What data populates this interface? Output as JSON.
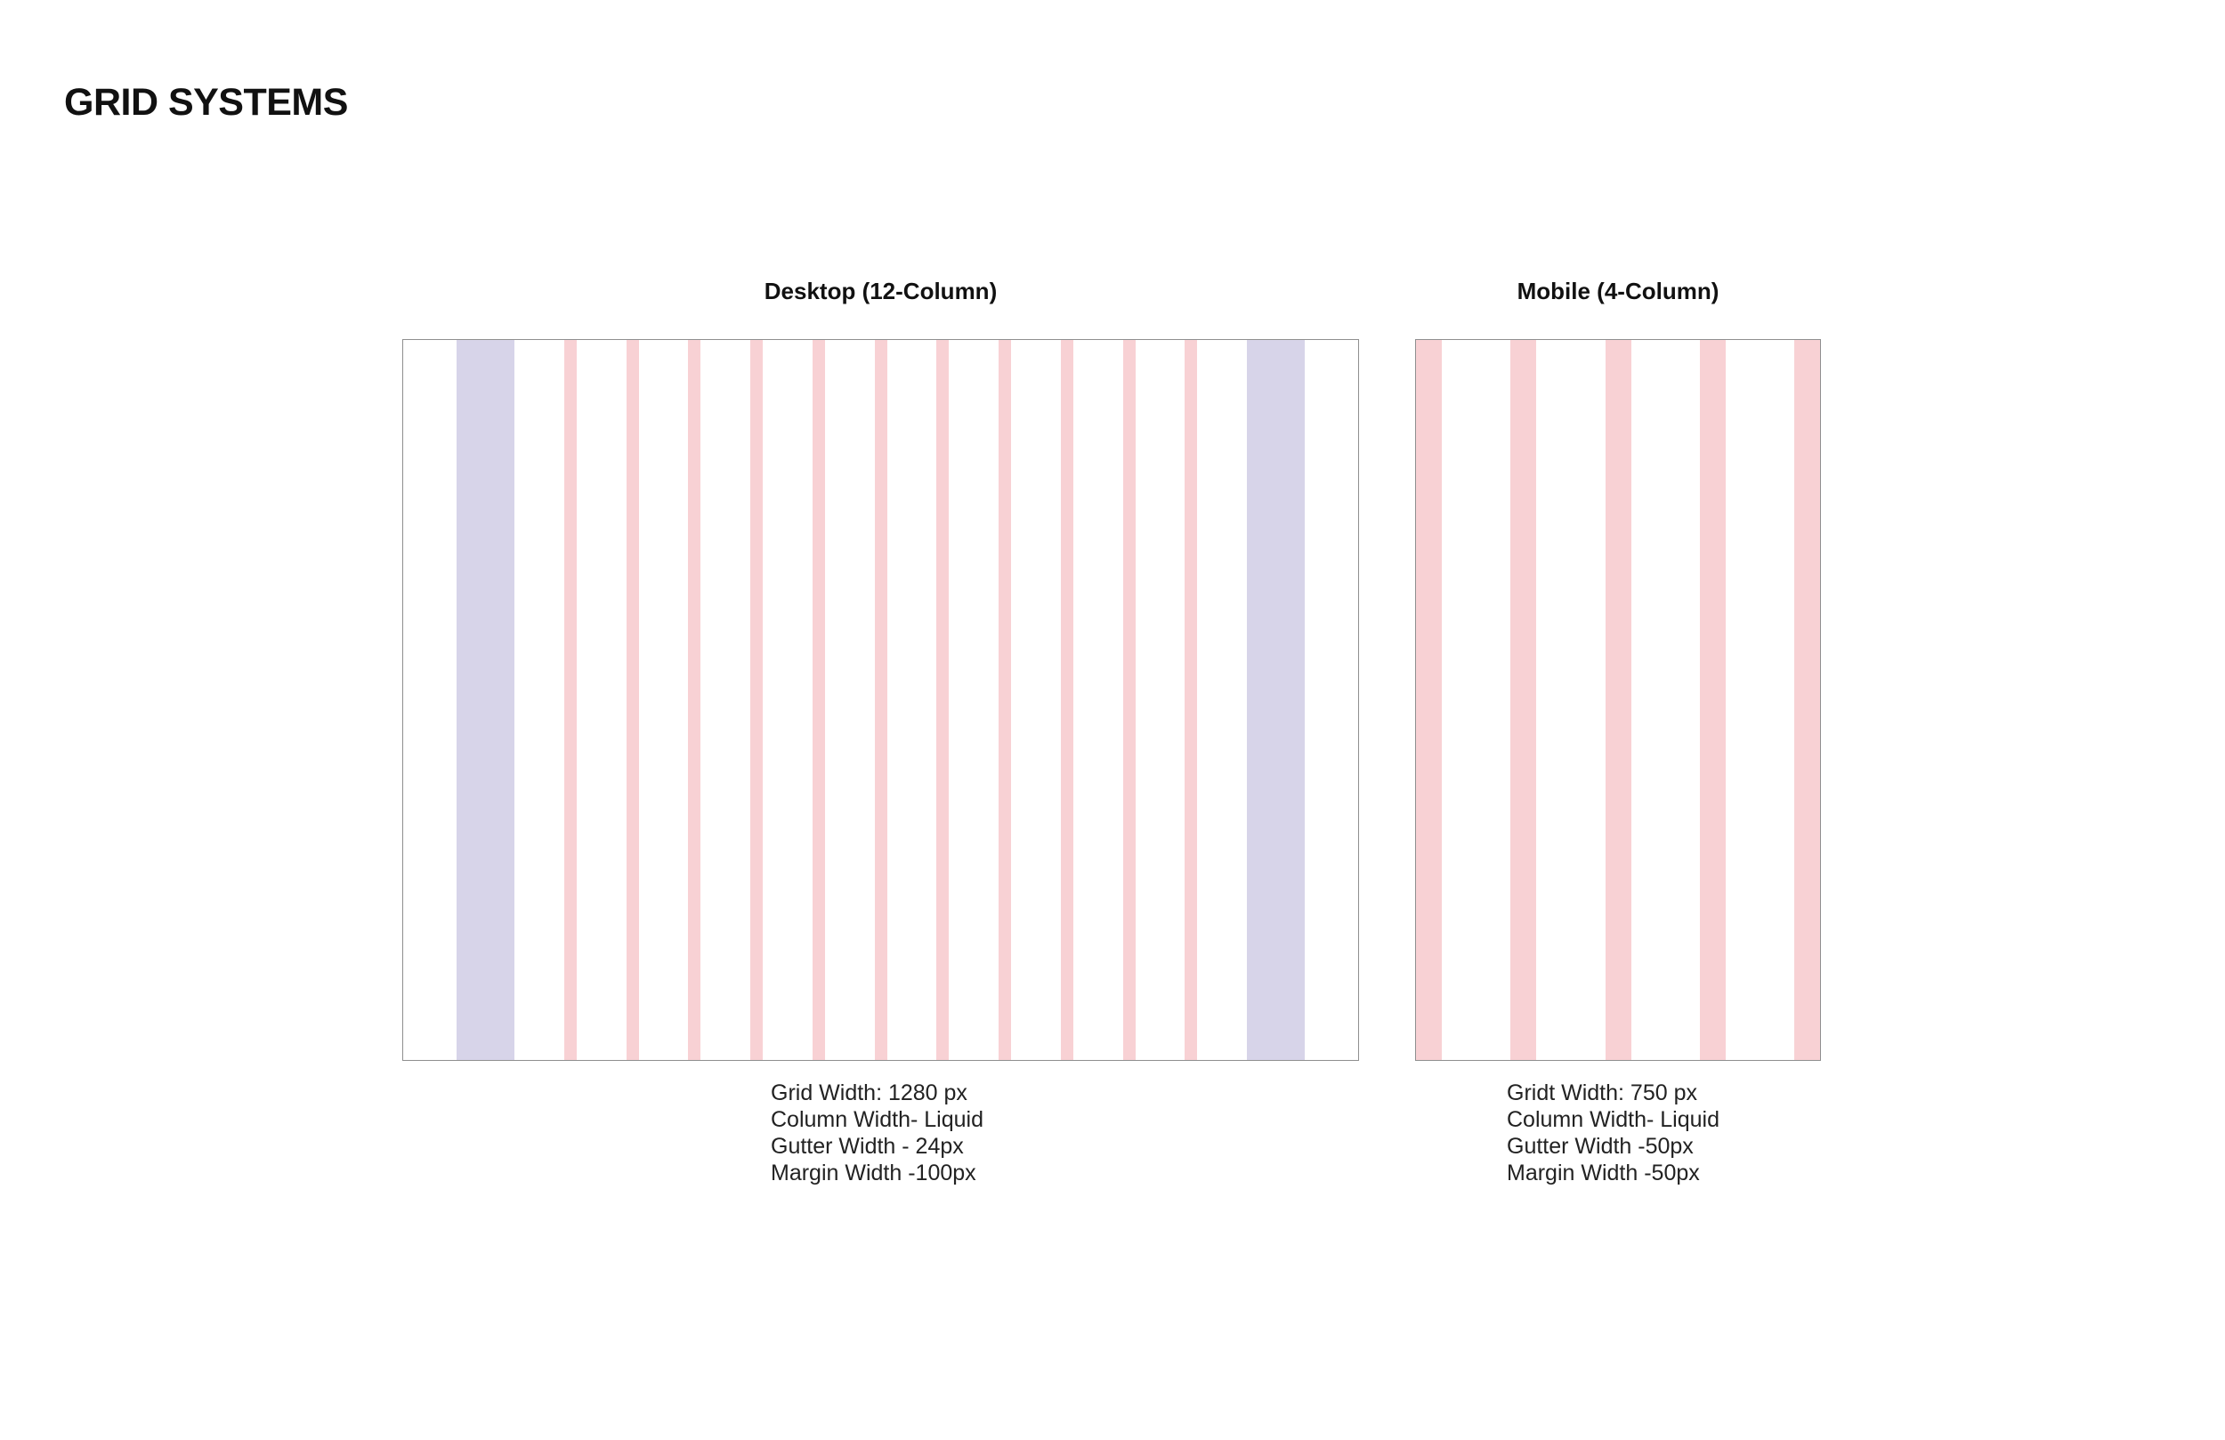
{
  "page": {
    "title": "GRID SYSTEMS"
  },
  "colors": {
    "gutter_pink": "#f8d1d4",
    "margin_lavender": "#d7d4e9",
    "box_border": "#8f8f8f",
    "heading_text": "#111111",
    "body_text": "#222222",
    "background": "#ffffff"
  },
  "desktop_grid": {
    "label": "Desktop (12-Column)",
    "column_count": 12,
    "gutter_count": 11,
    "specs": [
      "Grid Width: 1280 px",
      "Column Width- Liquid",
      "Gutter Width - 24px",
      "Margin Width -100px"
    ]
  },
  "mobile_grid": {
    "label": "Mobile (4-Column)",
    "column_count": 4,
    "margin_and_gutter_stripe_count": 5,
    "specs": [
      "Gridt Width: 750 px",
      "Column Width- Liquid",
      "Gutter Width -50px",
      "Margin Width -50px"
    ]
  }
}
